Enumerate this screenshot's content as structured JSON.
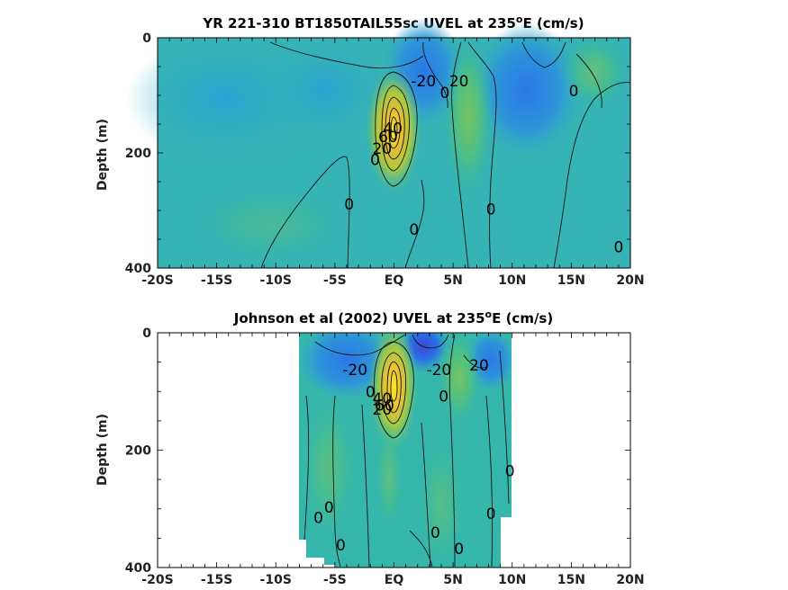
{
  "chart_data": [
    {
      "type": "heatmap",
      "title_main": "YR 221-310 BT1850TAIL55sc UVEL at 235",
      "title_sup": "o",
      "title_tail": "E (cm/s)",
      "ylabel": "Depth (m)",
      "xlim": [
        -20,
        20
      ],
      "ylim": [
        0,
        400
      ],
      "y_reversed": true,
      "x_ticks": [
        -20,
        -15,
        -10,
        -5,
        0,
        5,
        10,
        15,
        20
      ],
      "x_tick_labels": [
        "-20S",
        "-15S",
        "-10S",
        "-5S",
        "EQ",
        "5N",
        "10N",
        "15N",
        "20N"
      ],
      "y_ticks": [
        0,
        200,
        400
      ],
      "y_tick_labels": [
        "0",
        "200",
        "400"
      ],
      "data_lon_range": [
        -20,
        20
      ],
      "contour_labels": [
        {
          "text": "-20",
          "lat": 2.5,
          "depth": 75
        },
        {
          "text": "20",
          "lat": 5.5,
          "depth": 75
        },
        {
          "text": "0",
          "lat": 4.3,
          "depth": 95
        },
        {
          "text": "0",
          "lat": 15.2,
          "depth": 92
        },
        {
          "text": "40",
          "lat": -0.1,
          "depth": 157
        },
        {
          "text": "60",
          "lat": -0.5,
          "depth": 172
        },
        {
          "text": "20",
          "lat": -1.0,
          "depth": 192
        },
        {
          "text": "0",
          "lat": -1.6,
          "depth": 212
        },
        {
          "text": "0",
          "lat": -3.8,
          "depth": 289
        },
        {
          "text": "0",
          "lat": 1.7,
          "depth": 333
        },
        {
          "text": "0",
          "lat": 8.2,
          "depth": 298
        },
        {
          "text": "0",
          "lat": 19.0,
          "depth": 363
        }
      ]
    },
    {
      "type": "heatmap",
      "title_main": "Johnson et al (2002) UVEL at 235",
      "title_sup": "o",
      "title_tail": "E (cm/s)",
      "ylabel": "Depth (m)",
      "xlim": [
        -20,
        20
      ],
      "ylim": [
        0,
        400
      ],
      "y_reversed": true,
      "x_ticks": [
        -20,
        -15,
        -10,
        -5,
        0,
        5,
        10,
        15,
        20
      ],
      "x_tick_labels": [
        "-20S",
        "-15S",
        "-10S",
        "-5S",
        "EQ",
        "5N",
        "10N",
        "15N",
        "20N"
      ],
      "y_ticks": [
        0,
        200,
        400
      ],
      "y_tick_labels": [
        "0",
        "200",
        "400"
      ],
      "data_lon_range": [
        -8,
        10
      ],
      "contour_labels": [
        {
          "text": "-20",
          "lat": -3.3,
          "depth": 63
        },
        {
          "text": "-20",
          "lat": 3.8,
          "depth": 63
        },
        {
          "text": "20",
          "lat": 7.2,
          "depth": 55
        },
        {
          "text": "0",
          "lat": -2.0,
          "depth": 100
        },
        {
          "text": "40",
          "lat": -1.0,
          "depth": 112
        },
        {
          "text": "60",
          "lat": -0.8,
          "depth": 123
        },
        {
          "text": "20",
          "lat": -1.0,
          "depth": 130
        },
        {
          "text": "0",
          "lat": 4.2,
          "depth": 108
        },
        {
          "text": "0",
          "lat": 9.8,
          "depth": 235
        },
        {
          "text": "0",
          "lat": -6.4,
          "depth": 315
        },
        {
          "text": "0",
          "lat": -5.5,
          "depth": 297
        },
        {
          "text": "0",
          "lat": 8.2,
          "depth": 308
        },
        {
          "text": "0",
          "lat": -4.5,
          "depth": 362
        },
        {
          "text": "0",
          "lat": 3.5,
          "depth": 340
        },
        {
          "text": "0",
          "lat": 5.5,
          "depth": 368
        }
      ]
    }
  ]
}
